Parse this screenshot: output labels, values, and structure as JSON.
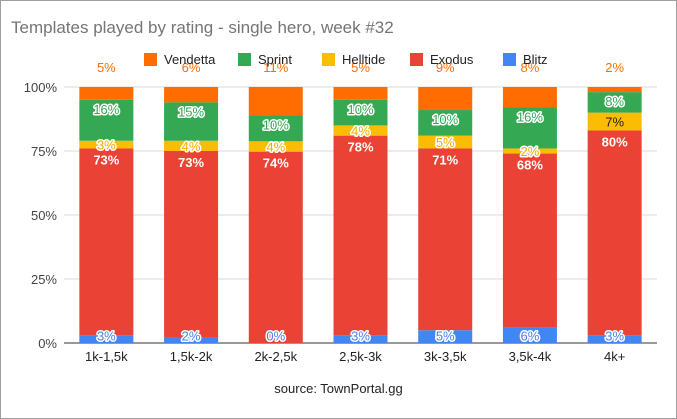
{
  "chart_data": {
    "type": "bar",
    "stacked": "percent",
    "title": "Templates played by rating - single hero, week #32",
    "source": "source: TownPortal.gg",
    "categories": [
      "1k-1,5k",
      "1,5k-2k",
      "2k-2,5k",
      "2,5k-3k",
      "3k-3,5k",
      "3,5k-4k",
      "4k+"
    ],
    "yticks": [
      "0%",
      "25%",
      "50%",
      "75%",
      "100%"
    ],
    "ylim": [
      0,
      100
    ],
    "grid": true,
    "legend_position": "top",
    "legend_order": [
      "Vendetta",
      "Sprint",
      "Helltide",
      "Exodus",
      "Blitz"
    ],
    "series": [
      {
        "name": "Blitz",
        "color": "#4285f4",
        "values": [
          3,
          2,
          0,
          3,
          5,
          6,
          3
        ],
        "labels": [
          "3%",
          "2%",
          "0%",
          "3%",
          "5%",
          "6%",
          "3%"
        ]
      },
      {
        "name": "Exodus",
        "color": "#ea4335",
        "values": [
          73,
          73,
          74,
          78,
          71,
          68,
          80
        ],
        "labels": [
          "73%",
          "73%",
          "74%",
          "78%",
          "71%",
          "68%",
          "80%"
        ]
      },
      {
        "name": "Helltide",
        "color": "#fbbc04",
        "values": [
          3,
          4,
          4,
          4,
          5,
          2,
          7
        ],
        "labels": [
          "3%",
          "4%",
          "4%",
          "4%",
          "5%",
          "2%",
          "7%"
        ]
      },
      {
        "name": "Sprint",
        "color": "#34a853",
        "values": [
          16,
          15,
          10,
          10,
          10,
          16,
          8
        ],
        "labels": [
          "16%",
          "15%",
          "10%",
          "10%",
          "10%",
          "16%",
          "8%"
        ]
      },
      {
        "name": "Vendetta",
        "color": "#ff6d01",
        "values": [
          5,
          6,
          11,
          5,
          9,
          8,
          2
        ],
        "labels": [
          "5%",
          "6%",
          "11%",
          "5%",
          "9%",
          "8%",
          "2%"
        ]
      }
    ]
  }
}
